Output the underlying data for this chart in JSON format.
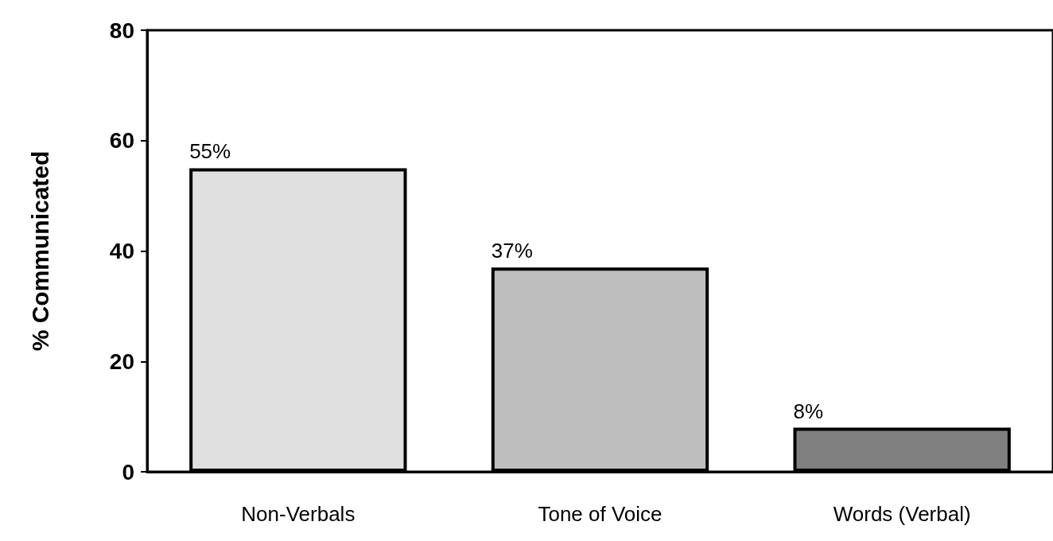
{
  "chart_data": {
    "type": "bar",
    "ylabel": "% Communicated",
    "categories": [
      "Non-Verbals",
      "Tone of Voice",
      "Words (Verbal)"
    ],
    "values": [
      55,
      37,
      8
    ],
    "colors": [
      "#e0e0e0",
      "#bebebe",
      "#808080"
    ],
    "value_labels": [
      "55%",
      "37%",
      "8%"
    ],
    "ylim": [
      0,
      80
    ],
    "yticks": [
      0,
      20,
      40,
      60,
      80
    ],
    "grid": false
  }
}
